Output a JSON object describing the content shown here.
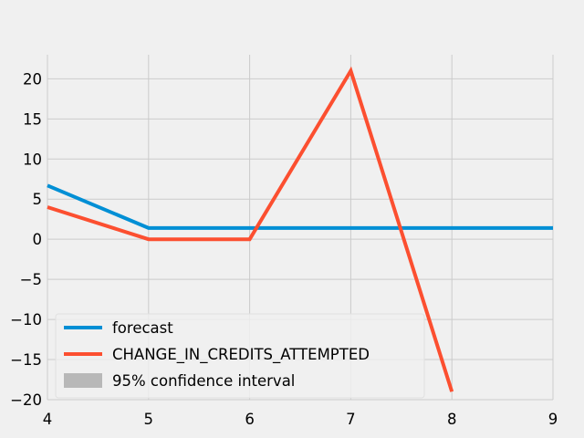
{
  "chart_data": {
    "type": "line",
    "title": "",
    "xlabel": "",
    "ylabel": "",
    "xlim": [
      4,
      9
    ],
    "ylim": [
      -20,
      23
    ],
    "x_ticks": [
      4,
      5,
      6,
      7,
      8,
      9
    ],
    "y_ticks": [
      -20,
      -15,
      -10,
      -5,
      0,
      5,
      10,
      15,
      20
    ],
    "grid": true,
    "legend_position": "lower-left",
    "series": [
      {
        "name": "forecast",
        "color": "#008fd5",
        "x": [
          4,
          5,
          6,
          7,
          8,
          9
        ],
        "y": [
          6.7,
          1.4,
          1.4,
          1.4,
          1.4,
          1.4
        ]
      },
      {
        "name": "CHANGE_IN_CREDITS_ATTEMPTED",
        "color": "#fc4f30",
        "x": [
          4,
          5,
          6,
          7,
          8
        ],
        "y": [
          4,
          0,
          0,
          21,
          -19
        ]
      }
    ],
    "legend": [
      {
        "label": "forecast",
        "kind": "line",
        "color": "#008fd5"
      },
      {
        "label": "CHANGE_IN_CREDITS_ATTEMPTED",
        "kind": "line",
        "color": "#fc4f30"
      },
      {
        "label": "95% confidence interval",
        "kind": "patch",
        "color": "#b8b8b8"
      }
    ]
  }
}
